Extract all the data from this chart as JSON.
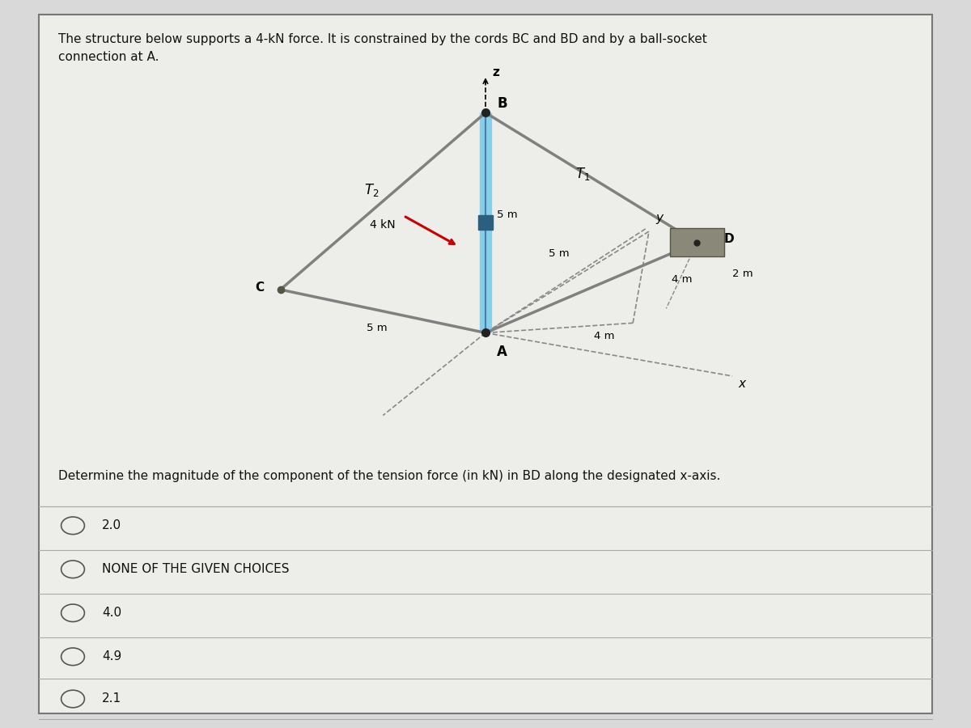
{
  "title_text": "The structure below supports a 4-kN force. It is constrained by the cords BC and BD and by a ball-socket\nconnection at A.",
  "question_text": "Determine the magnitude of the component of the tension force (in kN) in BD along the designated x-axis.",
  "choices": [
    "2.0",
    "NONE OF THE GIVEN CHOICES",
    "4.0",
    "4.9",
    "2.1"
  ],
  "bg_color": "#d9d9d9",
  "fig_width": 12.0,
  "fig_height": 9.0,
  "diagram_bg": "#cdc9c4",
  "struct_color": "#808080",
  "bar_color": "#87ceeb",
  "bar_dark": "#4a7fa5",
  "node_color": "#222222",
  "force_color": "#cc0000",
  "dashed_color": "#888888",
  "text_color": "#111111"
}
